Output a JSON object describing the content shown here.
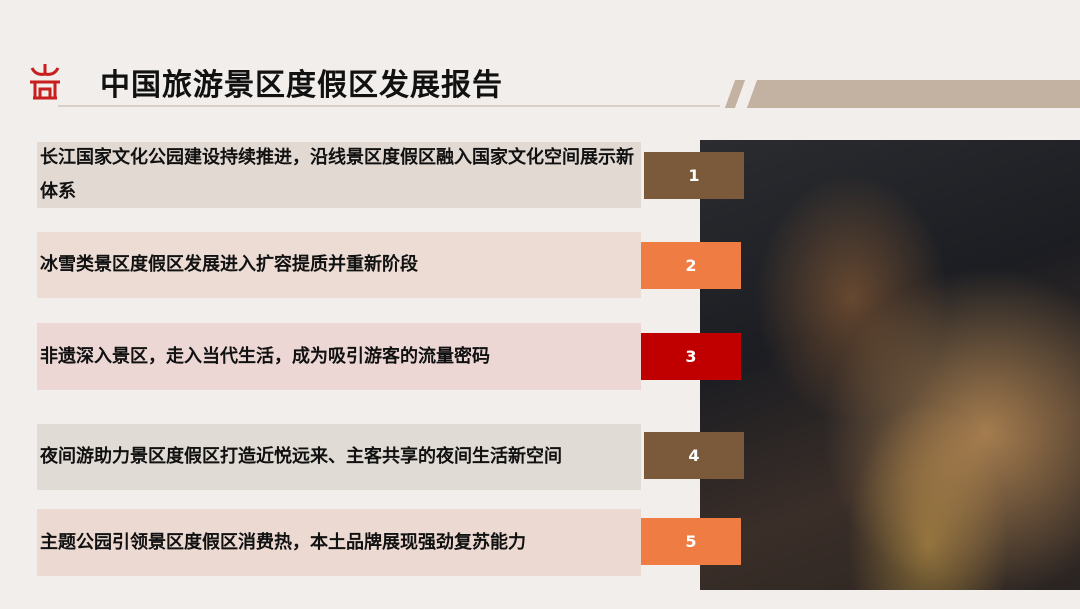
{
  "header": {
    "title": "中国旅游景区度假区发展报告",
    "logo_icon": "pavilion-icon"
  },
  "colors": {
    "brown": "#7a5a3a",
    "orange": "#ef7c42",
    "red": "#c00000",
    "accent": "#c3b2a2"
  },
  "items": [
    {
      "number": "1",
      "text": "长江国家文化公园建设持续推进，沿线景区度假区融入国家文化空间展示新体系"
    },
    {
      "number": "2",
      "text": "冰雪类景区度假区发展进入扩容提质并重新阶段"
    },
    {
      "number": "3",
      "text": "非遗深入景区，走入当代生活，成为吸引游客的流量密码"
    },
    {
      "number": "4",
      "text": "夜间游助力景区度假区打造近悦远来、主客共享的夜间生活新空间"
    },
    {
      "number": "5",
      "text": "主题公园引领景区度假区消费热，本土品牌展现强劲复苏能力"
    }
  ]
}
